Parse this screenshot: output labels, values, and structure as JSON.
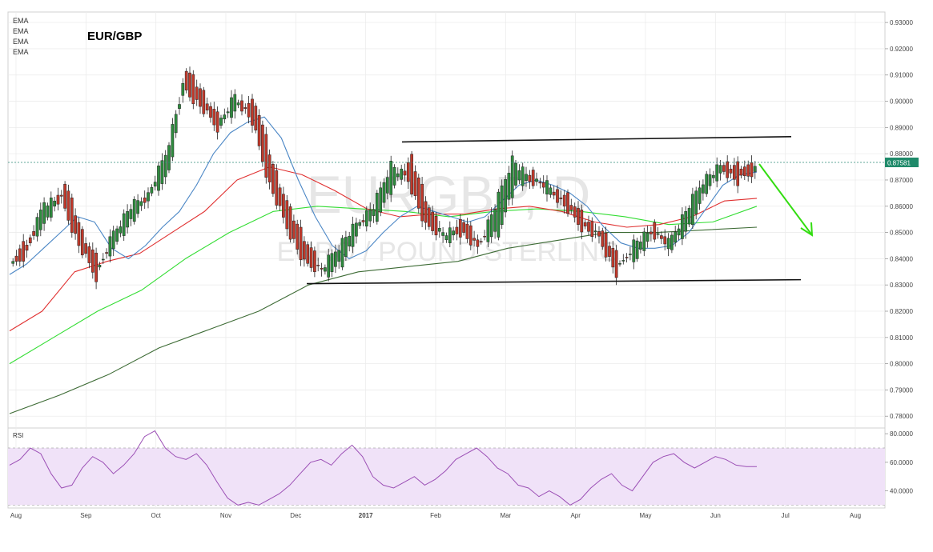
{
  "chart_data": [
    {
      "type": "candlestick",
      "title": "EUR/GBP",
      "watermark": {
        "line1": "EURGBP, D",
        "line2": "EURO / POUND STERLING"
      },
      "indicator_labels": [
        "EMA",
        "EMA",
        "EMA",
        "EMA"
      ],
      "x_tick_labels": [
        "Aug",
        "Sep",
        "Oct",
        "Nov",
        "Dec",
        "2017",
        "Feb",
        "Mar",
        "Apr",
        "May",
        "Jun",
        "Jul",
        "Aug"
      ],
      "y_tick_labels": [
        "0.93000",
        "0.92000",
        "0.91000",
        "0.90000",
        "0.89000",
        "0.88000",
        "0.87000",
        "0.86000",
        "0.85000",
        "0.84000",
        "0.83000",
        "0.82000",
        "0.81000",
        "0.80000",
        "0.79000",
        "0.78000"
      ],
      "ylim": [
        0.7755,
        0.934
      ],
      "last_price": "0.87581",
      "colors": {
        "up": "#2e8b3e",
        "down": "#c0392b",
        "ema_fast": "#4a86c5",
        "ema_red": "#e03030",
        "ema_green": "#33dd33",
        "ema_long": "#3d6b35",
        "annotation": "#111111",
        "arrow": "#33dd11",
        "rsi": "#9b4fb5",
        "rsi_band": "#f0e2f8"
      },
      "candle_path": [
        [
          0.84,
          0.836
        ],
        [
          0.848,
          0.842
        ],
        [
          0.854,
          0.862
        ],
        [
          0.869,
          0.862
        ],
        [
          0.85,
          0.845
        ],
        [
          0.838,
          0.833
        ],
        [
          0.846,
          0.85
        ],
        [
          0.856,
          0.86
        ],
        [
          0.865,
          0.864
        ],
        [
          0.872,
          0.88
        ],
        [
          0.912,
          0.905
        ],
        [
          0.903,
          0.898
        ],
        [
          0.892,
          0.89
        ],
        [
          0.898,
          0.902
        ],
        [
          0.9,
          0.892
        ],
        [
          0.876,
          0.868
        ],
        [
          0.858,
          0.852
        ],
        [
          0.846,
          0.838
        ],
        [
          0.834,
          0.836
        ],
        [
          0.838,
          0.845
        ],
        [
          0.852,
          0.853
        ],
        [
          0.856,
          0.86
        ],
        [
          0.868,
          0.876
        ],
        [
          0.878,
          0.87
        ],
        [
          0.86,
          0.852
        ],
        [
          0.846,
          0.85
        ],
        [
          0.855,
          0.85
        ],
        [
          0.846,
          0.844
        ],
        [
          0.85,
          0.86
        ],
        [
          0.868,
          0.878
        ],
        [
          0.872,
          0.87
        ],
        [
          0.865,
          0.868
        ],
        [
          0.864,
          0.86
        ],
        [
          0.855,
          0.852
        ],
        [
          0.85,
          0.848
        ],
        [
          0.84,
          0.834
        ],
        [
          0.84,
          0.846
        ],
        [
          0.852,
          0.85
        ],
        [
          0.844,
          0.846
        ],
        [
          0.852,
          0.858
        ],
        [
          0.866,
          0.87
        ],
        [
          0.875,
          0.875
        ],
        [
          0.876,
          0.869
        ],
        [
          0.874,
          0.874
        ]
      ],
      "ema_fast_path": [
        0.834,
        0.838,
        0.844,
        0.85,
        0.856,
        0.854,
        0.844,
        0.84,
        0.845,
        0.852,
        0.858,
        0.868,
        0.88,
        0.888,
        0.892,
        0.894,
        0.886,
        0.87,
        0.856,
        0.845,
        0.84,
        0.843,
        0.85,
        0.856,
        0.86,
        0.858,
        0.856,
        0.854,
        0.856,
        0.862,
        0.868,
        0.87,
        0.868,
        0.865,
        0.86,
        0.852,
        0.846,
        0.844,
        0.844,
        0.845,
        0.85,
        0.859,
        0.868,
        0.872,
        0.873
      ],
      "ema_red_path": [
        0.8125,
        0.82,
        0.835,
        0.839,
        0.842,
        0.85,
        0.858,
        0.87,
        0.875,
        0.872,
        0.866,
        0.859,
        0.856,
        0.857,
        0.857,
        0.859,
        0.86,
        0.858,
        0.854,
        0.852,
        0.853,
        0.856,
        0.862,
        0.863
      ],
      "ema_green_path": [
        0.8,
        0.81,
        0.82,
        0.828,
        0.84,
        0.85,
        0.858,
        0.86,
        0.859,
        0.858,
        0.856,
        0.858,
        0.859,
        0.858,
        0.856,
        0.853,
        0.854,
        0.86
      ],
      "ema_long_path": [
        0.781,
        0.788,
        0.796,
        0.806,
        0.813,
        0.82,
        0.83,
        0.835,
        0.837,
        0.839,
        0.844,
        0.847,
        0.85,
        0.85,
        0.851,
        0.852
      ],
      "channel_top": [
        0.8845,
        0.8865
      ],
      "channel_bottom": [
        0.8305,
        0.832
      ],
      "rsi": {
        "label": "RSI",
        "y_tick_labels": [
          "80.0000",
          "60.0000",
          "40.0000"
        ],
        "ylim": [
          28,
          84
        ],
        "upper_band": 70,
        "lower_band": 30,
        "path": [
          58,
          62,
          70,
          66,
          52,
          42,
          44,
          56,
          64,
          60,
          52,
          58,
          66,
          78,
          82,
          70,
          64,
          62,
          66,
          58,
          46,
          35,
          30,
          32,
          30,
          34,
          38,
          44,
          52,
          60,
          62,
          58,
          66,
          72,
          64,
          50,
          44,
          42,
          46,
          50,
          44,
          48,
          54,
          62,
          66,
          70,
          64,
          56,
          52,
          44,
          42,
          36,
          40,
          36,
          30,
          34,
          42,
          48,
          52,
          44,
          40,
          50,
          60,
          64,
          66,
          60,
          56,
          60,
          64,
          62,
          58,
          57,
          57
        ]
      }
    }
  ]
}
